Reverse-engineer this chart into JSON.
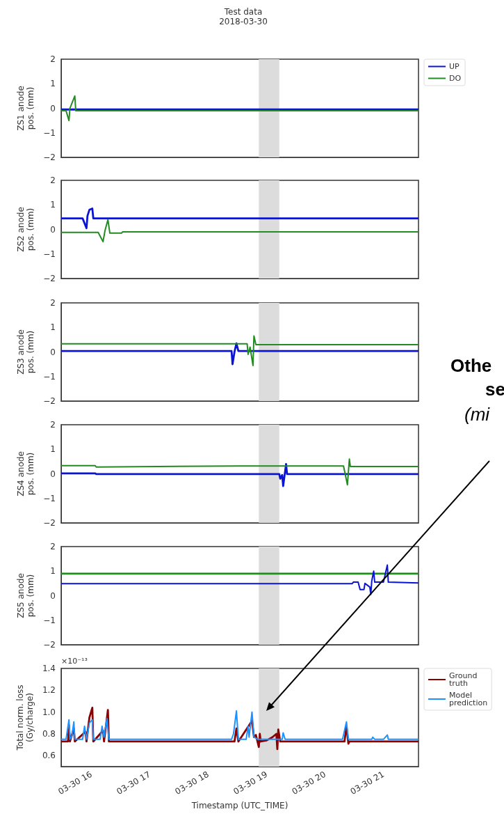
{
  "chart_data": [
    {
      "type": "line",
      "title": "Test data",
      "subtitle": "2018-03-30",
      "ylabel": "ZS1 anode\npos. (mm)",
      "xlim": [
        "2018-03-30T15:29",
        "2018-03-30T21:36"
      ],
      "ylim": [
        -2,
        2
      ],
      "yticks": [
        {
          "value": -2,
          "label": "−2"
        },
        {
          "value": -1,
          "label": "−1"
        },
        0,
        1,
        2
      ],
      "tick_labels": "y",
      "legend": "top right",
      "bands": [
        {
          "axis": "x",
          "from": "2018-03-30T18:52",
          "to": "2018-03-30T19:13",
          "color": "#dcdcdc"
        }
      ],
      "series": [
        {
          "name": "UP",
          "color": "#0a14d2",
          "x": [
            "2018-03-30T15:29",
            "2018-03-30T21:36"
          ],
          "values": [
            -0.05,
            -0.05
          ]
        },
        {
          "name": "DO",
          "color": "#228b22",
          "x": [
            "2018-03-30T15:29",
            "2018-03-30T15:34",
            "2018-03-30T15:37",
            "2018-03-30T15:38",
            "2018-03-30T15:40",
            "2018-03-30T15:43",
            "2018-03-30T15:44",
            "2018-03-30T21:36"
          ],
          "values": [
            -0.1,
            -0.1,
            -0.5,
            0,
            0.2,
            0.5,
            -0.1,
            -0.1
          ]
        }
      ]
    },
    {
      "type": "line",
      "ylabel": "ZS2 anode\npos. (mm)",
      "xlim": [
        "2018-03-30T15:29",
        "2018-03-30T21:36"
      ],
      "ylim": [
        -2,
        2
      ],
      "yticks": [
        {
          "value": -2,
          "label": "−2"
        },
        {
          "value": -1,
          "label": "−1"
        },
        0,
        1,
        2
      ],
      "tick_labels": "y",
      "bands": [
        {
          "axis": "x",
          "from": "2018-03-30T18:52",
          "to": "2018-03-30T19:13",
          "color": "#dcdcdc"
        }
      ],
      "series": [
        {
          "color": "#0a14d2",
          "x": [
            "2018-03-30T15:29",
            "2018-03-30T15:51",
            "2018-03-30T15:55",
            "2018-03-30T15:56",
            "2018-03-30T15:58",
            "2018-03-30T16:01",
            "2018-03-30T16:02",
            "2018-03-30T21:36"
          ],
          "values": [
            0.45,
            0.45,
            0.05,
            0.55,
            0.8,
            0.85,
            0.45,
            0.45
          ]
        },
        {
          "color": "#228b22",
          "x": [
            "2018-03-30T15:29",
            "2018-03-30T16:07",
            "2018-03-30T16:12",
            "2018-03-30T16:14",
            "2018-03-30T16:17",
            "2018-03-30T16:19",
            "2018-03-30T16:31",
            "2018-03-30T16:32",
            "2018-03-30T21:36"
          ],
          "values": [
            -0.12,
            -0.12,
            -0.5,
            -0.05,
            0.4,
            -0.15,
            -0.15,
            -0.1,
            -0.1
          ]
        }
      ]
    },
    {
      "type": "line",
      "ylabel": "ZS3 anode\npos. (mm)",
      "xlim": [
        "2018-03-30T15:29",
        "2018-03-30T21:36"
      ],
      "ylim": [
        -2,
        2
      ],
      "yticks": [
        {
          "value": -2,
          "label": "−2"
        },
        {
          "value": -1,
          "label": "−1"
        },
        0,
        1,
        2
      ],
      "tick_labels": "y",
      "annotations": [
        "Othe",
        "se",
        "(mi"
      ],
      "bands": [
        {
          "axis": "x",
          "from": "2018-03-30T18:52",
          "to": "2018-03-30T19:13",
          "color": "#dcdcdc"
        }
      ],
      "series": [
        {
          "color": "#0a14d2",
          "x": [
            "2018-03-30T15:29",
            "2018-03-30T18:24",
            "2018-03-30T18:25",
            "2018-03-30T18:27",
            "2018-03-30T18:29",
            "2018-03-30T18:31",
            "2018-03-30T21:36"
          ],
          "values": [
            0.04,
            0.04,
            -0.5,
            0,
            0.35,
            0.04,
            0.04
          ]
        },
        {
          "color": "#228b22",
          "x": [
            "2018-03-30T15:29",
            "2018-03-30T18:40",
            "2018-03-30T18:41",
            "2018-03-30T18:43",
            "2018-03-30T18:46",
            "2018-03-30T18:47",
            "2018-03-30T18:49",
            "2018-03-30T21:36"
          ],
          "values": [
            0.33,
            0.33,
            -0.1,
            0.2,
            -0.55,
            0.65,
            0.3,
            0.3
          ]
        }
      ]
    },
    {
      "type": "line",
      "ylabel": "ZS4 anode\npos. (mm)",
      "xlim": [
        "2018-03-30T15:29",
        "2018-03-30T21:36"
      ],
      "ylim": [
        -2,
        2
      ],
      "yticks": [
        {
          "value": -2,
          "label": "−2"
        },
        {
          "value": -1,
          "label": "−1"
        },
        0,
        1,
        2
      ],
      "tick_labels": "y",
      "bands": [
        {
          "axis": "x",
          "from": "2018-03-30T18:52",
          "to": "2018-03-30T19:13",
          "color": "#dcdcdc"
        }
      ],
      "series": [
        {
          "color": "#0a14d2",
          "x": [
            "2018-03-30T15:29",
            "2018-03-30T16:04",
            "2018-03-30T16:05",
            "2018-03-30T19:13",
            "2018-03-30T19:14",
            "2018-03-30T19:16",
            "2018-03-30T19:17",
            "2018-03-30T19:20",
            "2018-03-30T19:21",
            "2018-03-30T21:36"
          ],
          "values": [
            0.02,
            0.02,
            -0.01,
            -0.01,
            -0.2,
            -0.05,
            -0.5,
            0.4,
            -0.01,
            -0.01
          ]
        },
        {
          "color": "#228b22",
          "x": [
            "2018-03-30T15:29",
            "2018-03-30T16:04",
            "2018-03-30T16:05",
            "2018-03-30T18:30",
            "2018-03-30T20:19",
            "2018-03-30T20:23",
            "2018-03-30T20:25",
            "2018-03-30T20:26",
            "2018-03-30T21:36"
          ],
          "values": [
            0.33,
            0.33,
            0.28,
            0.32,
            0.32,
            -0.45,
            0.6,
            0.3,
            0.3
          ]
        }
      ]
    },
    {
      "type": "line",
      "ylabel": "ZS5 anode\npos. (mm)",
      "xlim": [
        "2018-03-30T15:29",
        "2018-03-30T21:36"
      ],
      "ylim": [
        -2,
        2
      ],
      "yticks": [
        {
          "value": -2,
          "label": "−2"
        },
        {
          "value": -1,
          "label": "−1"
        },
        0,
        1,
        2
      ],
      "tick_labels": "y",
      "bands": [
        {
          "axis": "x",
          "from": "2018-03-30T18:52",
          "to": "2018-03-30T19:13",
          "color": "#dcdcdc"
        }
      ],
      "series": [
        {
          "color": "#228b22",
          "x": [
            "2018-03-30T15:29",
            "2018-03-30T21:36"
          ],
          "values": [
            0.9,
            0.9
          ]
        },
        {
          "color": "#0a14d2",
          "x": [
            "2018-03-30T15:29",
            "2018-03-30T20:28",
            "2018-03-30T20:29",
            "2018-03-30T20:34",
            "2018-03-30T20:36",
            "2018-03-30T20:40",
            "2018-03-30T20:41",
            "2018-03-30T20:46",
            "2018-03-30T20:47",
            "2018-03-30T20:48",
            "2018-03-30T20:50",
            "2018-03-30T20:51",
            "2018-03-30T21:00",
            "2018-03-30T21:04",
            "2018-03-30T21:05",
            "2018-03-30T21:36"
          ],
          "values": [
            0.49,
            0.49,
            0.55,
            0.55,
            0.25,
            0.25,
            0.5,
            0.35,
            0.05,
            0.6,
            1.0,
            0.55,
            0.55,
            1.25,
            0.55,
            0.52
          ]
        }
      ]
    },
    {
      "type": "line",
      "ylabel": "Total norm. loss\n(Gy/charge)",
      "xlabel": "Timestamp (UTC_TIME)",
      "xlim": [
        "2018-03-30T15:29",
        "2018-03-30T21:36"
      ],
      "ylim": [
        0.5,
        1.4
      ],
      "yticks": [
        0.6,
        0.8,
        {
          "value": 1,
          "label": "1.0"
        },
        1.2,
        1.4
      ],
      "xticks": [
        {
          "value": "2018-03-30T16:00",
          "label": "03-30 16"
        },
        {
          "value": "2018-03-30T17:00",
          "label": "03-30 17"
        },
        {
          "value": "2018-03-30T18:00",
          "label": "03-30 18"
        },
        {
          "value": "2018-03-30T19:00",
          "label": "03-30 19"
        },
        {
          "value": "2018-03-30T20:00",
          "label": "03-30 20"
        },
        {
          "value": "2018-03-30T21:00",
          "label": "03-30 21"
        }
      ],
      "annotations": [
        "×10⁻¹³"
      ],
      "legend": "top right",
      "bands": [
        {
          "axis": "x",
          "from": "2018-03-30T18:52",
          "to": "2018-03-30T19:13",
          "color": "#dcdcdc"
        }
      ],
      "series": [
        {
          "name": "Ground\ntruth",
          "color": "#8b0000",
          "x": [
            "2018-03-30T15:29",
            "2018-03-30T15:36",
            "2018-03-30T15:37",
            "2018-03-30T15:38",
            "2018-03-30T15:42",
            "2018-03-30T15:43",
            "2018-03-30T15:54",
            "2018-03-30T15:55",
            "2018-03-30T15:58",
            "2018-03-30T16:01",
            "2018-03-30T16:02",
            "2018-03-30T16:12",
            "2018-03-30T16:13",
            "2018-03-30T16:17",
            "2018-03-30T16:18",
            "2018-03-30T18:27",
            "2018-03-30T18:29",
            "2018-03-30T18:31",
            "2018-03-30T18:45",
            "2018-03-30T18:47",
            "2018-03-30T18:49",
            "2018-03-30T18:52",
            "2018-03-30T18:53",
            "2018-03-30T18:54",
            "2018-03-30T19:00",
            "2018-03-30T19:06",
            "2018-03-30T19:10",
            "2018-03-30T19:11",
            "2018-03-30T19:12",
            "2018-03-30T19:14",
            "2018-03-30T20:20",
            "2018-03-30T20:22",
            "2018-03-30T20:24",
            "2018-03-30T20:25",
            "2018-03-30T21:36"
          ],
          "values": [
            0.73,
            0.73,
            0.88,
            0.73,
            0.85,
            0.73,
            0.82,
            0.73,
            0.95,
            1.04,
            0.73,
            0.83,
            0.73,
            1.02,
            0.73,
            0.73,
            0.85,
            0.73,
            0.92,
            0.77,
            0.79,
            0.68,
            0.8,
            0.73,
            0.74,
            0.77,
            0.8,
            0.66,
            0.84,
            0.73,
            0.73,
            0.87,
            0.71,
            0.73,
            0.73
          ]
        },
        {
          "name": "Model\nprediction",
          "color": "#1e90ff",
          "x": [
            "2018-03-30T15:29",
            "2018-03-30T15:34",
            "2018-03-30T15:37",
            "2018-03-30T15:38",
            "2018-03-30T15:40",
            "2018-03-30T15:42",
            "2018-03-30T15:43",
            "2018-03-30T15:51",
            "2018-03-30T15:53",
            "2018-03-30T15:55",
            "2018-03-30T15:58",
            "2018-03-30T16:01",
            "2018-03-30T16:02",
            "2018-03-30T16:09",
            "2018-03-30T16:11",
            "2018-03-30T16:13",
            "2018-03-30T16:16",
            "2018-03-30T16:18",
            "2018-03-30T18:24",
            "2018-03-30T18:26",
            "2018-03-30T18:29",
            "2018-03-30T18:31",
            "2018-03-30T18:39",
            "2018-03-30T18:41",
            "2018-03-30T18:42",
            "2018-03-30T18:45",
            "2018-03-30T18:47",
            "2018-03-30T18:51",
            "2018-03-30T19:16",
            "2018-03-30T19:17",
            "2018-03-30T19:19",
            "2018-03-30T20:18",
            "2018-03-30T20:22",
            "2018-03-30T20:24",
            "2018-03-30T20:48",
            "2018-03-30T20:49",
            "2018-03-30T20:51",
            "2018-03-30T21:00",
            "2018-03-30T21:04",
            "2018-03-30T21:05",
            "2018-03-30T21:36"
          ],
          "values": [
            0.75,
            0.75,
            0.93,
            0.75,
            0.78,
            0.91,
            0.75,
            0.75,
            0.87,
            0.75,
            0.9,
            0.93,
            0.75,
            0.75,
            0.87,
            0.77,
            0.94,
            0.75,
            0.75,
            0.8,
            1.01,
            0.75,
            0.75,
            0.87,
            0.77,
            1.0,
            0.77,
            0.75,
            0.75,
            0.81,
            0.75,
            0.75,
            0.91,
            0.75,
            0.75,
            0.77,
            0.75,
            0.75,
            0.79,
            0.75,
            0.75
          ]
        }
      ]
    }
  ]
}
